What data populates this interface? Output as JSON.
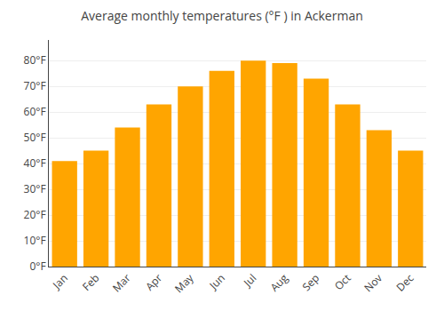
{
  "chart_data": {
    "type": "bar",
    "title": "Average monthly temperatures (°F ) in Ackerman",
    "categories": [
      "Jan",
      "Feb",
      "Mar",
      "Apr",
      "May",
      "Jun",
      "Jul",
      "Aug",
      "Sep",
      "Oct",
      "Nov",
      "Dec"
    ],
    "values": [
      41,
      45,
      54,
      63,
      70,
      76,
      80,
      79,
      73,
      63,
      53,
      45
    ],
    "color": "#FFA500",
    "ylim": [
      0,
      88
    ],
    "yticks": [
      {
        "value": 0,
        "label": "0°F"
      },
      {
        "value": 10,
        "label": "10°F"
      },
      {
        "value": 20,
        "label": "20°F"
      },
      {
        "value": 30,
        "label": "30°F"
      },
      {
        "value": 40,
        "label": "40°F"
      },
      {
        "value": 50,
        "label": "50°F"
      },
      {
        "value": 60,
        "label": "60°F"
      },
      {
        "value": 70,
        "label": "70°F"
      },
      {
        "value": 80,
        "label": "80°F"
      }
    ],
    "grid": true
  }
}
